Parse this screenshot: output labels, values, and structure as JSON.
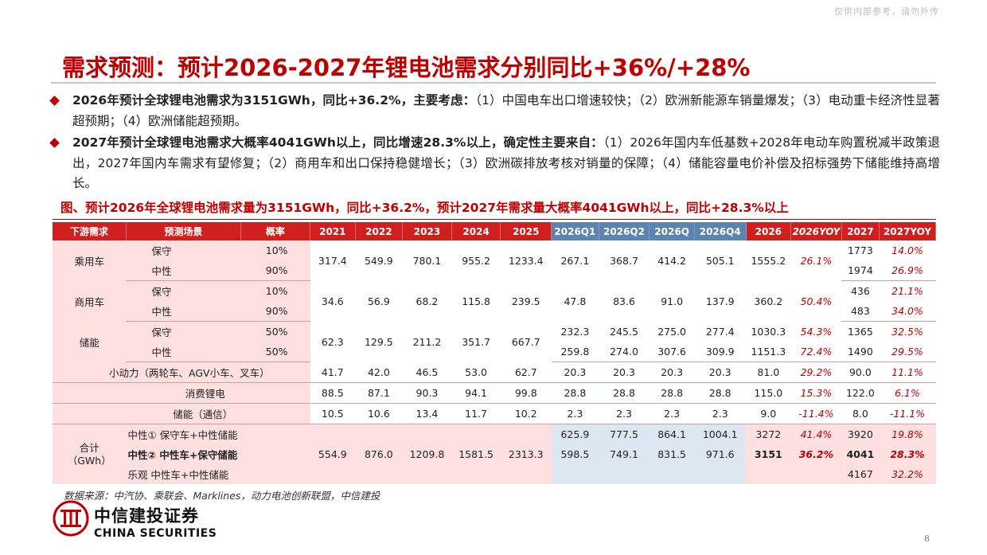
{
  "watermark": "仅供内部参考，请勿外传",
  "title": "需求预测：预计2026-2027年锂电池需求分别同比+36%/+28%",
  "bullets": [
    {
      "bold": "2026年预计全球锂电池需求为3151GWh，同比+36.2%，主要考虑：",
      "text": "（1）中国电车出口增速较快；（2）欧洲新能源车销量爆发；（3）电动重卡经济性显著超预期；（4）欧洲储能超预期。"
    },
    {
      "bold": "2027年预计全球锂电池需求大概率4041GWh以上，同比增速28.3%以上，确定性主要来自：",
      "text": "（1）2026年国内车低基数+2028年电动车购置税减半政策退出，2027年国内车需求有望修复；（2）商用车和出口保持稳健增长；（3）欧洲碳排放考核对销量的保障；（4）储能容量电价补偿及招标强势下储能维持高增长。"
    }
  ],
  "caption": "图、预计2026年全球锂电池需求量为3151GWh，同比+36.2%，预计2027年需求量大概率4041GWh以上，同比+28.3%以上",
  "table": {
    "headers": [
      "下游需求",
      "预测场景",
      "概率",
      "2021",
      "2022",
      "2023",
      "2024",
      "2025",
      "2026Q1",
      "2026Q2",
      "2026Q",
      "2026Q4",
      "2026",
      "2026YOY",
      "2027",
      "2027YOY"
    ],
    "car": {
      "label": "乘用车",
      "s1": "保守",
      "s2": "中性",
      "p1": "10%",
      "p2": "90%",
      "vals": [
        "317.4",
        "549.9",
        "780.1",
        "955.2",
        "1233.4",
        "267.1",
        "368.7",
        "414.2",
        "505.1",
        "1555.2",
        "26.1%"
      ],
      "y27a": "1773",
      "yoy27a": "14.0%",
      "y27b": "1974",
      "yoy27b": "26.9%"
    },
    "comm": {
      "label": "商用车",
      "s1": "保守",
      "s2": "中性",
      "p1": "10%",
      "p2": "90%",
      "vals": [
        "34.6",
        "56.9",
        "68.2",
        "115.8",
        "239.5",
        "47.8",
        "83.6",
        "91.0",
        "137.9",
        "360.2",
        "50.4%"
      ],
      "y27a": "436",
      "yoy27a": "21.1%",
      "y27b": "483",
      "yoy27b": "34.0%"
    },
    "ess": {
      "label": "储能",
      "s1": "保守",
      "s2": "中性",
      "p1": "50%",
      "p2": "50%",
      "hist": [
        "62.3",
        "129.5",
        "211.2",
        "351.7",
        "667.7"
      ],
      "r1": [
        "232.3",
        "245.5",
        "275.0",
        "277.4",
        "1030.3",
        "54.3%",
        "1365",
        "32.5%"
      ],
      "r2": [
        "259.8",
        "274.0",
        "307.6",
        "309.9",
        "1151.3",
        "72.4%",
        "1490",
        "29.5%"
      ]
    },
    "small": {
      "label": "小动力（两轮车、AGV小车、叉车）",
      "vals": [
        "41.7",
        "42.0",
        "46.5",
        "53.0",
        "62.7",
        "20.3",
        "20.3",
        "20.3",
        "20.3",
        "81.0",
        "29.2%",
        "90.0",
        "11.1%"
      ]
    },
    "consumer": {
      "label": "消费锂电",
      "vals": [
        "88.5",
        "87.1",
        "90.3",
        "94.1",
        "99.8",
        "28.8",
        "28.8",
        "28.8",
        "28.8",
        "115.0",
        "15.3%",
        "122.0",
        "6.1%"
      ]
    },
    "telecom": {
      "label": "储能（通信）",
      "vals": [
        "10.5",
        "10.6",
        "13.4",
        "11.7",
        "10.2",
        "2.3",
        "2.3",
        "2.3",
        "2.3",
        "9.0",
        "-11.4%",
        "8.0",
        "-11.1%"
      ]
    },
    "total": {
      "label1": "合计",
      "label2": "（GWh）",
      "s1": "中性① 保守车+中性储能",
      "s2": "中性② 中性车+保守储能",
      "s3": "乐观 中性车+中性储能",
      "hist": [
        "554.9",
        "876.0",
        "1209.8",
        "1581.5",
        "2313.3"
      ],
      "r1": [
        "625.9",
        "777.5",
        "864.1",
        "1004.1",
        "3272",
        "41.4%",
        "3920",
        "19.8%"
      ],
      "r2": [
        "598.5",
        "749.1",
        "831.5",
        "971.6",
        "3151",
        "36.2%",
        "4041",
        "28.3%"
      ],
      "r3": [
        "4167",
        "32.2%"
      ]
    }
  },
  "source": "数据来源：中汽协、乘联会、Marklines，动力电池创新联盟，中信建投",
  "logo": {
    "cn": "中信建投证券",
    "en": "CHINA SECURITIES"
  },
  "page_number": "8",
  "colors": {
    "accent": "#c00000",
    "header_red": "#d01f1f",
    "header_blue": "#5b84b1",
    "pink": "#fde0df",
    "light_blue": "#dde7f2"
  }
}
